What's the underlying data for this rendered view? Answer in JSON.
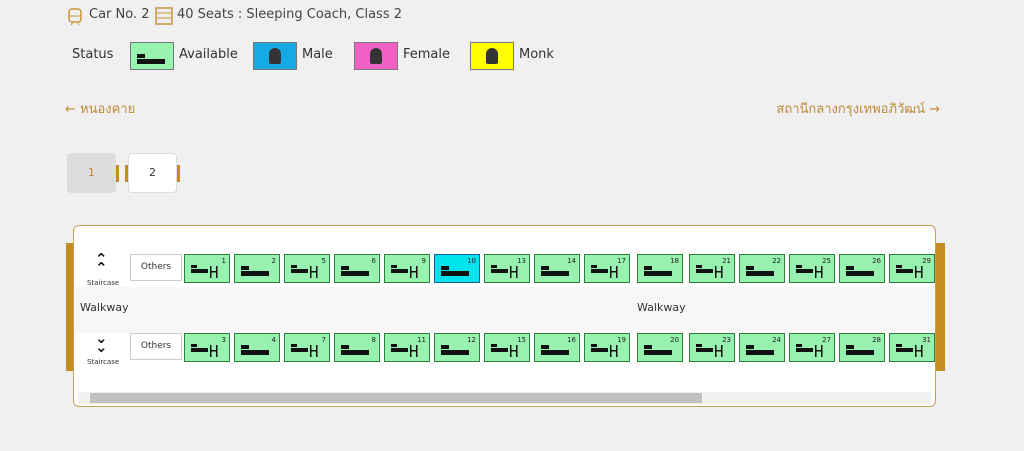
{
  "header": {
    "car": "Car No. 2",
    "seats": "40 Seats : Sleeping Coach, Class 2"
  },
  "legend": {
    "label": "Status",
    "items": [
      {
        "name": "Available",
        "color": "#96f2ae"
      },
      {
        "name": "Male",
        "color": "#17a9e6"
      },
      {
        "name": "Female",
        "color": "#f25fc6"
      },
      {
        "name": "Monk",
        "color": "#ffff00"
      }
    ]
  },
  "route": {
    "from": "หนองคาย",
    "to": "สถานีกลางกรุงเทพอภิวัฒน์"
  },
  "pages": [
    "1",
    "2"
  ],
  "coach": {
    "selected": "10",
    "walkway": [
      "Walkway",
      "Walkway"
    ],
    "rows": [
      {
        "staircase": "Staircase",
        "others": "Others",
        "seats": [
          "1",
          "2",
          "5",
          "6",
          "9",
          "10",
          "13",
          "14",
          "17",
          "18",
          "21",
          "22",
          "25",
          "26",
          "29"
        ]
      },
      {
        "staircase": "Staircase",
        "others": "Others",
        "seats": [
          "3",
          "4",
          "7",
          "8",
          "11",
          "12",
          "15",
          "16",
          "19",
          "20",
          "23",
          "24",
          "27",
          "28",
          "31"
        ]
      }
    ]
  }
}
